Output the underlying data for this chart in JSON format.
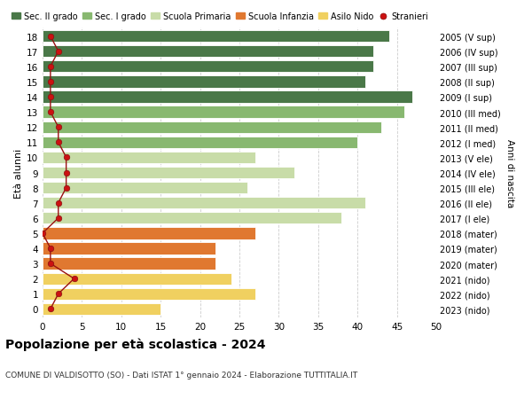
{
  "ages": [
    0,
    1,
    2,
    3,
    4,
    5,
    6,
    7,
    8,
    9,
    10,
    11,
    12,
    13,
    14,
    15,
    16,
    17,
    18
  ],
  "bar_values": [
    15,
    27,
    24,
    22,
    22,
    27,
    38,
    41,
    26,
    32,
    27,
    40,
    43,
    46,
    47,
    41,
    42,
    42,
    44
  ],
  "bar_colors": [
    "#f0d060",
    "#f0d060",
    "#f0d060",
    "#e07830",
    "#e07830",
    "#e07830",
    "#c8dca8",
    "#c8dca8",
    "#c8dca8",
    "#c8dca8",
    "#c8dca8",
    "#88b870",
    "#88b870",
    "#88b870",
    "#4a7848",
    "#4a7848",
    "#4a7848",
    "#4a7848",
    "#4a7848"
  ],
  "stranieri_values": [
    1,
    2,
    4,
    1,
    1,
    0,
    2,
    2,
    3,
    3,
    3,
    2,
    2,
    1,
    1,
    1,
    1,
    2,
    1
  ],
  "right_labels": [
    "2023 (nido)",
    "2022 (nido)",
    "2021 (nido)",
    "2020 (mater)",
    "2019 (mater)",
    "2018 (mater)",
    "2017 (I ele)",
    "2016 (II ele)",
    "2015 (III ele)",
    "2014 (IV ele)",
    "2013 (V ele)",
    "2012 (I med)",
    "2011 (II med)",
    "2010 (III med)",
    "2009 (I sup)",
    "2008 (II sup)",
    "2007 (III sup)",
    "2006 (IV sup)",
    "2005 (V sup)"
  ],
  "legend_labels": [
    "Sec. II grado",
    "Sec. I grado",
    "Scuola Primaria",
    "Scuola Infanzia",
    "Asilo Nido",
    "Stranieri"
  ],
  "legend_colors": [
    "#4a7848",
    "#88b870",
    "#c8dca8",
    "#e07830",
    "#f0d060",
    "#cc1111"
  ],
  "ylabel": "Età alunni",
  "right_ylabel": "Anni di nascita",
  "title": "Popolazione per età scolastica - 2024",
  "subtitle": "COMUNE DI VALDISOTTO (SO) - Dati ISTAT 1° gennaio 2024 - Elaborazione TUTTITALIA.IT",
  "xlim": [
    0,
    50
  ],
  "xticks": [
    0,
    5,
    10,
    15,
    20,
    25,
    30,
    35,
    40,
    45,
    50
  ],
  "bar_height": 0.78,
  "background_color": "#ffffff",
  "grid_color": "#cccccc"
}
